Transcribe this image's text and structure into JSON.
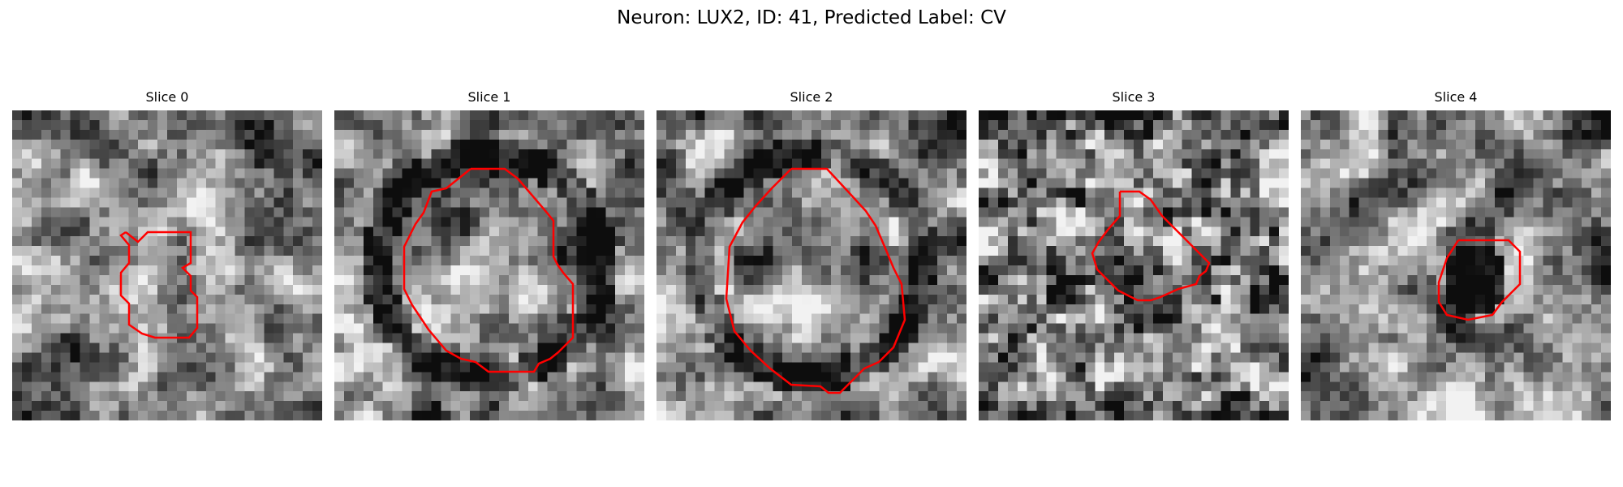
{
  "figure": {
    "title": "Neuron: LUX2, ID: 41, Predicted Label: CV",
    "contour_color": "#ff0000",
    "colormap": "gray"
  },
  "panels": [
    {
      "title": "Slice 0",
      "seed": 11,
      "darkness": "medium"
    },
    {
      "title": "Slice 1",
      "seed": 23,
      "darkness": "ring"
    },
    {
      "title": "Slice 2",
      "seed": 37,
      "darkness": "ring"
    },
    {
      "title": "Slice 3",
      "seed": 53,
      "darkness": "noisy"
    },
    {
      "title": "Slice 4",
      "seed": 71,
      "darkness": "dark-core"
    }
  ]
}
